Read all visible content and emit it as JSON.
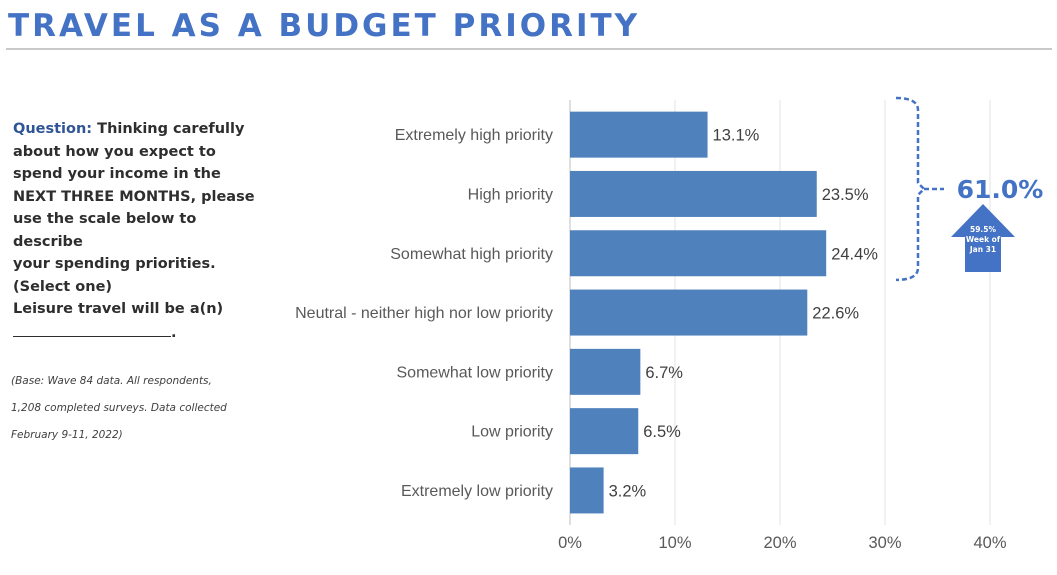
{
  "header": {
    "title": "TRAVEL AS A BUDGET PRIORITY"
  },
  "question": {
    "label": "Question:",
    "text_lines": [
      "Thinking carefully",
      "about how you expect to",
      "spend your income in the",
      "NEXT THREE MONTHS, please",
      "use the scale below to describe",
      "your spending priorities.",
      "(Select one)"
    ],
    "statement": "Leisure travel will be a(n)",
    "statement_end": "."
  },
  "base_note": {
    "lines": [
      "(Base: Wave 84 data. All respondents,",
      "1,208 completed surveys. Data collected",
      "February 9-11, 2022)"
    ]
  },
  "chart_data": {
    "type": "bar",
    "orientation": "horizontal",
    "categories": [
      "Extremely high priority",
      "High priority",
      "Somewhat high priority",
      "Neutral - neither high nor low priority",
      "Somewhat low priority",
      "Low priority",
      "Extremely low priority"
    ],
    "values": [
      13.1,
      23.5,
      24.4,
      22.6,
      6.7,
      6.5,
      3.2
    ],
    "value_labels": [
      "13.1%",
      "23.5%",
      "24.4%",
      "22.6%",
      "6.7%",
      "6.5%",
      "3.2%"
    ],
    "xlim": [
      0,
      40
    ],
    "xticks": [
      0,
      10,
      20,
      30,
      40
    ],
    "xtick_labels": [
      "0%",
      "10%",
      "20%",
      "30%",
      "40%"
    ],
    "grid": "vertical",
    "bar_color": "#4F81BD",
    "annotation": {
      "bracket_categories": [
        "Extremely high priority",
        "High priority",
        "Somewhat high priority"
      ],
      "total_label": "61.0%",
      "comparison_lines": [
        "59.5%",
        "Week of",
        "Jan 31"
      ],
      "accent_color": "#4472C4"
    }
  }
}
